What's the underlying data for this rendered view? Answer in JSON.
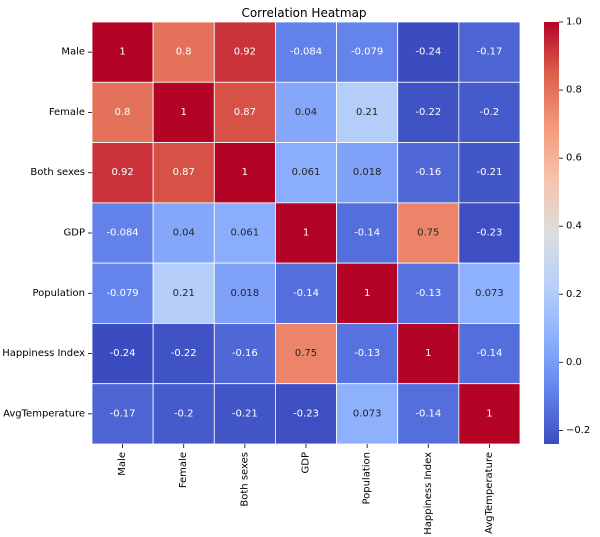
{
  "chart_data": {
    "type": "heatmap",
    "title": "Correlation Heatmap",
    "variables": [
      "Male",
      "Female",
      "Both sexes",
      "GDP",
      "Population",
      "Happiness Index",
      "AvgTemperature"
    ],
    "values": [
      [
        1,
        0.8,
        0.92,
        -0.084,
        -0.079,
        -0.24,
        -0.17
      ],
      [
        0.8,
        1,
        0.87,
        0.04,
        0.21,
        -0.22,
        -0.2
      ],
      [
        0.92,
        0.87,
        1,
        0.061,
        0.018,
        -0.16,
        -0.21
      ],
      [
        -0.084,
        0.04,
        0.061,
        1,
        -0.14,
        0.75,
        -0.23
      ],
      [
        -0.079,
        0.21,
        0.018,
        -0.14,
        1,
        -0.13,
        0.073
      ],
      [
        -0.24,
        -0.22,
        -0.16,
        0.75,
        -0.13,
        1,
        -0.14
      ],
      [
        -0.17,
        -0.2,
        -0.21,
        -0.23,
        0.073,
        -0.14,
        1
      ]
    ],
    "labels": [
      [
        "1",
        "0.8",
        "0.92",
        "-0.084",
        "-0.079",
        "-0.24",
        "-0.17"
      ],
      [
        "0.8",
        "1",
        "0.87",
        "0.04",
        "0.21",
        "-0.22",
        "-0.2"
      ],
      [
        "0.92",
        "0.87",
        "1",
        "0.061",
        "0.018",
        "-0.16",
        "-0.21"
      ],
      [
        "-0.084",
        "0.04",
        "0.061",
        "1",
        "-0.14",
        "0.75",
        "-0.23"
      ],
      [
        "-0.079",
        "0.21",
        "0.018",
        "-0.14",
        "1",
        "-0.13",
        "0.073"
      ],
      [
        "-0.24",
        "-0.22",
        "-0.16",
        "0.75",
        "-0.13",
        "1",
        "-0.14"
      ],
      [
        "-0.17",
        "-0.2",
        "-0.21",
        "-0.23",
        "0.073",
        "-0.14",
        "1"
      ]
    ],
    "colormap": "coolwarm",
    "vmin": -0.24,
    "vmax": 1.0,
    "colorbar_ticks": [
      1.0,
      0.8,
      0.6,
      0.4,
      0.2,
      0.0,
      -0.2
    ],
    "colorbar_tick_labels": [
      "1.0",
      "0.8",
      "0.6",
      "0.4",
      "0.2",
      "0.0",
      "−0.2"
    ]
  }
}
